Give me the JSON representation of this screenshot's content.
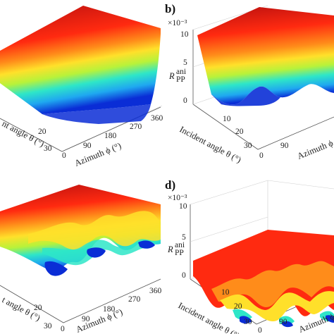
{
  "figure": {
    "colormap": [
      "#0a2dd6",
      "#1fa8f0",
      "#2ee6c8",
      "#b8f23a",
      "#ffe02a",
      "#ff8c1a",
      "#ff2a10",
      "#b80f0f"
    ]
  },
  "chart_data": [
    {
      "panel": "a",
      "type": "surface",
      "label_text": "",
      "zunit_text": "",
      "zlabel_text": "",
      "xlabel_text": "Incident angle θ (°)",
      "xlabel_visible": "nt angle θ (°)",
      "ylabel_text": "Azimuth ϕ (°)",
      "xticks": [
        "20",
        "30"
      ],
      "yticks": [
        "0",
        "90",
        "180",
        "270",
        "360"
      ],
      "zticks": []
    },
    {
      "panel": "b",
      "type": "surface",
      "label_text": "b)",
      "zunit_text": "×10⁻³",
      "zlabel_text": "R",
      "zlabel_sup": "ani",
      "zlabel_sub": "PP",
      "xlabel_text": "Incident angle θ (°)",
      "ylabel_text": "Azimuth ϕ",
      "ylabel_visible": "Azimuth ϕ",
      "xticks": [
        "10",
        "20",
        "30"
      ],
      "yticks": [
        "0",
        "90"
      ],
      "zticks": [
        "10",
        "5",
        "0"
      ]
    },
    {
      "panel": "c",
      "type": "surface",
      "label_text": "",
      "xlabel_visible": "t angle θ (°)",
      "ylabel_text": "Azimuth ϕ (°)",
      "xticks": [
        "20",
        "30"
      ],
      "yticks": [
        "0",
        "90",
        "180",
        "270",
        "360"
      ],
      "zticks": []
    },
    {
      "panel": "d",
      "type": "surface",
      "label_text": "d)",
      "zunit_text": "×10⁻³",
      "zlabel_text": "R",
      "zlabel_sup": "ani",
      "zlabel_sub": "PP",
      "xlabel_text": "Incident angle θ (°)",
      "ylabel_visible": "Azimuth ϕ",
      "xticks": [
        "10",
        "20",
        "30"
      ],
      "yticks": [
        "0",
        "90"
      ],
      "zticks": [
        "10",
        "5",
        "0"
      ]
    }
  ]
}
